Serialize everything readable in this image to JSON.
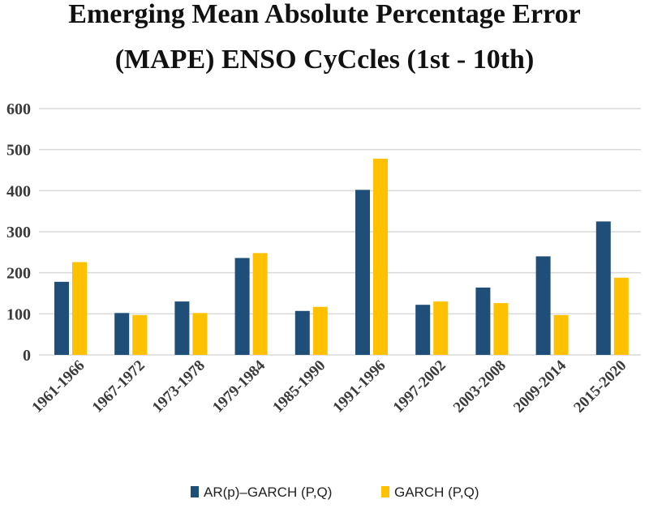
{
  "chart_data": {
    "type": "bar",
    "title_lines": [
      "Emerging Mean Absolute Percentage Error",
      "(MAPE) ENSO CyCcles (1st - 10th)"
    ],
    "xlabel": "",
    "ylabel": "",
    "ylim": [
      0,
      600
    ],
    "yticks": [
      0,
      100,
      200,
      300,
      400,
      500,
      600
    ],
    "grid": true,
    "legend_position": "bottom",
    "categories": [
      "1961-1966",
      "1967-1972",
      "1973-1978",
      "1979-1984",
      "1985-1990",
      "1991-1996",
      "1997-2002",
      "2003-2008",
      "2009-2014",
      "2015-2020"
    ],
    "series": [
      {
        "name": "AR(p)–GARCH (P,Q)",
        "color": "#1f4e79",
        "values": [
          178,
          102,
          130,
          236,
          107,
          402,
          122,
          164,
          240,
          325
        ]
      },
      {
        "name": "GARCH (P,Q)",
        "color": "#ffc000",
        "values": [
          226,
          97,
          102,
          248,
          117,
          478,
          130,
          126,
          97,
          188
        ]
      }
    ]
  }
}
